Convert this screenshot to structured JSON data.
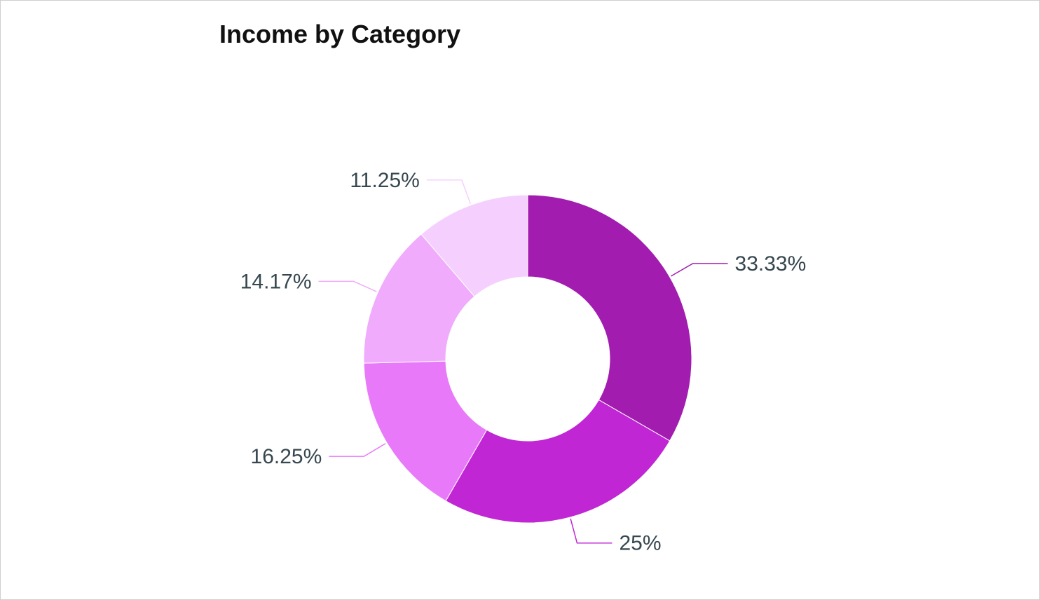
{
  "chart_data": {
    "type": "pie",
    "variant": "donut",
    "title": "Income by Category",
    "slices": [
      {
        "value": 33.33,
        "label": "33.33%",
        "color": "#a21caf"
      },
      {
        "value": 25,
        "label": "25%",
        "color": "#c026d3"
      },
      {
        "value": 16.25,
        "label": "16.25%",
        "color": "#e879f9"
      },
      {
        "value": 14.17,
        "label": "14.17%",
        "color": "#f0abfc"
      },
      {
        "value": 11.25,
        "label": "11.25%",
        "color": "#f5d0fe"
      }
    ],
    "legend": "none",
    "label_color": "#37474f"
  }
}
